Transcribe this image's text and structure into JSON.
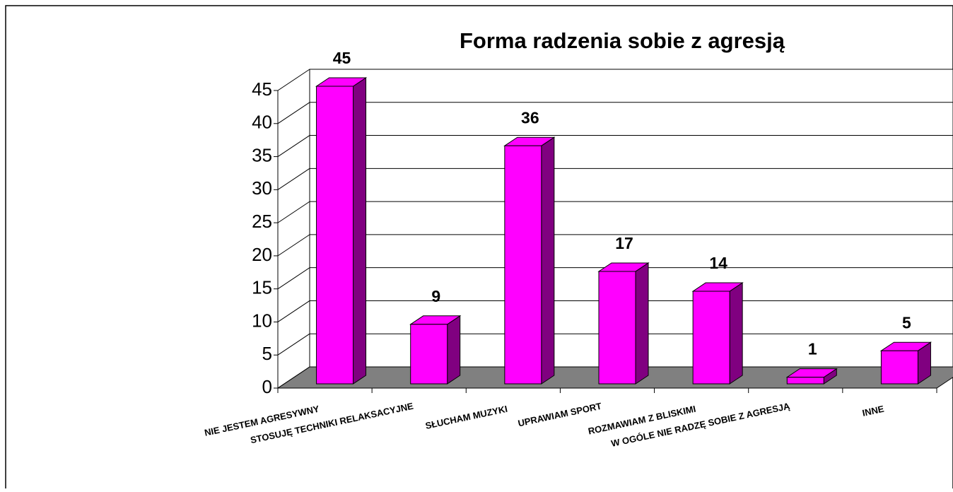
{
  "chart_data": {
    "type": "bar",
    "title": "Forma radzenia sobie z agresją",
    "categories": [
      "NIE JESTEM AGRESYWNY",
      "STOSUJĘ TECHNIKI RELAKSACYJNE",
      "SŁUCHAM MUZYKI",
      "UPRAWIAM SPORT",
      "ROZMAWIAM Z BLISKIMI",
      "W OGÓLE NIE RADZĘ SOBIE Z AGRESJĄ",
      "INNE"
    ],
    "values": [
      45,
      9,
      36,
      17,
      14,
      1,
      5
    ],
    "color": "#ff00ff",
    "side_color": "#800080",
    "floor_color": "#808080",
    "ylim": [
      0,
      45
    ],
    "yticks": [
      0,
      5,
      10,
      15,
      20,
      25,
      30,
      35,
      40,
      45
    ],
    "grid": true
  }
}
